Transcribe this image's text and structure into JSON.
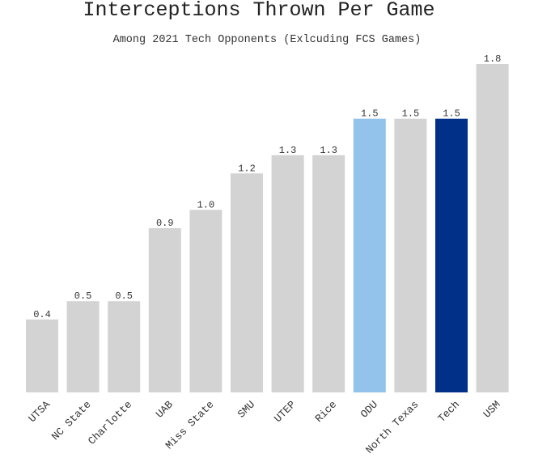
{
  "chart_data": {
    "type": "bar",
    "title": "Interceptions Thrown Per Game",
    "subtitle": "Among 2021 Tech Opponents (Exlcuding FCS Games)",
    "xlabel": "",
    "ylabel": "",
    "ylim": [
      0,
      1.8
    ],
    "grid": false,
    "categories": [
      "UTSA",
      "NC State",
      "Charlotte",
      "UAB",
      "Miss State",
      "SMU",
      "UTEP",
      "Rice",
      "ODU",
      "North Texas",
      "Tech",
      "USM"
    ],
    "values": [
      0.4,
      0.5,
      0.5,
      0.9,
      1.0,
      1.2,
      1.3,
      1.3,
      1.5,
      1.5,
      1.5,
      1.8
    ],
    "value_labels": [
      "0.4",
      "0.5",
      "0.5",
      "0.9",
      "1.0",
      "1.2",
      "1.3",
      "1.3",
      "1.5",
      "1.5",
      "1.5",
      "1.8"
    ],
    "colors": [
      "#d3d3d3",
      "#d3d3d3",
      "#d3d3d3",
      "#d3d3d3",
      "#d3d3d3",
      "#d3d3d3",
      "#d3d3d3",
      "#d3d3d3",
      "#93c2ea",
      "#d3d3d3",
      "#003087",
      "#d3d3d3"
    ]
  }
}
